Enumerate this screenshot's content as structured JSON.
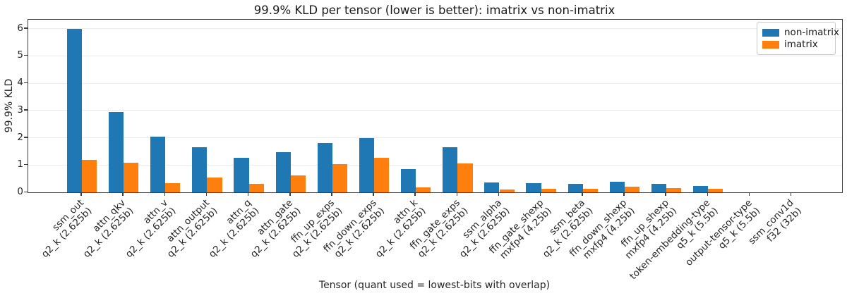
{
  "chart_data": {
    "type": "bar",
    "title": "99.9% KLD per tensor (lower is better): imatrix vs non-imatrix",
    "xlabel": "Tensor (quant used = lowest-bits with overlap)",
    "ylabel": "99.9% KLD",
    "ylim": [
      0,
      6.33
    ],
    "yticks": [
      0,
      1,
      2,
      3,
      4,
      5,
      6
    ],
    "grid": true,
    "legend_position": "upper right",
    "categories": [
      {
        "tensor": "ssm_out",
        "quant": "q2_k (2.625b)"
      },
      {
        "tensor": "attn_qkv",
        "quant": "q2_k (2.625b)"
      },
      {
        "tensor": "attn_v",
        "quant": "q2_k (2.625b)"
      },
      {
        "tensor": "attn_output",
        "quant": "q2_k (2.625b)"
      },
      {
        "tensor": "attn_q",
        "quant": "q2_k (2.625b)"
      },
      {
        "tensor": "attn_gate",
        "quant": "q2_k (2.625b)"
      },
      {
        "tensor": "ffn_up_exps",
        "quant": "q2_k (2.625b)"
      },
      {
        "tensor": "ffn_down_exps",
        "quant": "q2_k (2.625b)"
      },
      {
        "tensor": "attn_k",
        "quant": "q2_k (2.625b)"
      },
      {
        "tensor": "ffn_gate_exps",
        "quant": "q2_k (2.625b)"
      },
      {
        "tensor": "ssm_alpha",
        "quant": "q2_k (2.625b)"
      },
      {
        "tensor": "ffn_gate_shexp",
        "quant": "mxfp4 (4.25b)"
      },
      {
        "tensor": "ssm_beta",
        "quant": "q2_k (2.625b)"
      },
      {
        "tensor": "ffn_down_shexp",
        "quant": "mxfp4 (4.25b)"
      },
      {
        "tensor": "ffn_up_shexp",
        "quant": "mxfp4 (4.25b)"
      },
      {
        "tensor": "token-embedding-type",
        "quant": "q5_k (5.5b)"
      },
      {
        "tensor": "output-tensor-type",
        "quant": "q5_k (5.5b)"
      },
      {
        "tensor": "ssm_conv1d",
        "quant": "f32 (32b)"
      }
    ],
    "series": [
      {
        "name": "non-imatrix",
        "color": "#1f77b4",
        "values": [
          5.98,
          2.94,
          2.04,
          1.64,
          1.27,
          1.47,
          1.8,
          1.98,
          0.85,
          1.64,
          0.35,
          0.34,
          0.32,
          0.39,
          0.3,
          0.23,
          0.0,
          0.0
        ]
      },
      {
        "name": "imatrix",
        "color": "#ff7f0e",
        "values": [
          1.18,
          1.08,
          0.34,
          0.54,
          0.32,
          0.62,
          1.02,
          1.27,
          0.19,
          1.05,
          0.11,
          0.13,
          0.13,
          0.21,
          0.15,
          0.14,
          0.0,
          0.0
        ]
      }
    ]
  }
}
